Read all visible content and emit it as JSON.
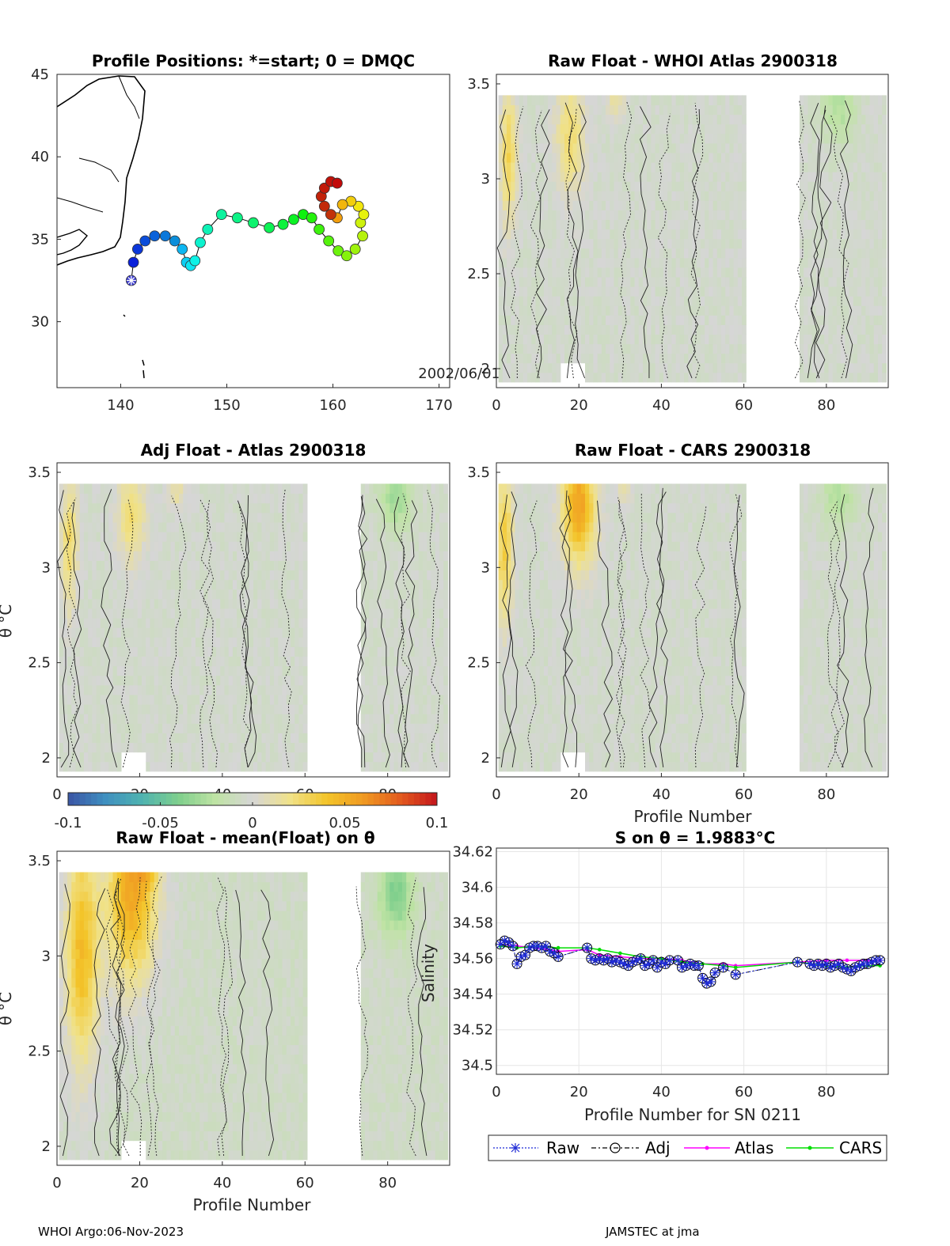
{
  "footer": {
    "left": "WHOI Argo:06-Nov-2023",
    "right": "JAMSTEC at jma"
  },
  "colors": {
    "colormap": [
      "#3b54a4",
      "#3f8fc0",
      "#4fb3b0",
      "#7fcf8c",
      "#bfe3a4",
      "#d6d6d6",
      "#f0e28a",
      "#f3c52a",
      "#f09a22",
      "#e35b1e",
      "#c4161c"
    ],
    "raw": "#1f2bd6",
    "adj": "#000000",
    "atlas": "#ff00ff",
    "cars": "#00dd00"
  },
  "chart_data": [
    {
      "id": "map",
      "type": "scatter",
      "title": "Profile Positions: *=start; 0 = DMQC",
      "xlim": [
        134,
        171
      ],
      "ylim": [
        26,
        45
      ],
      "xticks": [
        "140",
        "150",
        "160",
        "170"
      ],
      "yticks": [
        "30",
        "35",
        "40",
        "45"
      ],
      "date_label": "2002/06/01",
      "track": [
        [
          141,
          32.5
        ],
        [
          141.2,
          33.6
        ],
        [
          141.6,
          34.4
        ],
        [
          142.3,
          34.9
        ],
        [
          143.2,
          35.2
        ],
        [
          144.2,
          35.2
        ],
        [
          145.1,
          34.9
        ],
        [
          145.8,
          34.4
        ],
        [
          146.2,
          33.6
        ],
        [
          146.6,
          33.4
        ],
        [
          147,
          33.7
        ],
        [
          147.5,
          34.8
        ],
        [
          148.2,
          35.6
        ],
        [
          149.5,
          36.5
        ],
        [
          151,
          36.3
        ],
        [
          152.5,
          36
        ],
        [
          154,
          35.7
        ],
        [
          155.3,
          35.9
        ],
        [
          156.3,
          36.2
        ],
        [
          157.2,
          36.5
        ],
        [
          158,
          36.3
        ],
        [
          158.7,
          35.6
        ],
        [
          159.6,
          34.9
        ],
        [
          160.5,
          34.3
        ],
        [
          161.3,
          34
        ],
        [
          162.1,
          34.4
        ],
        [
          162.8,
          35.2
        ],
        [
          162.6,
          36
        ],
        [
          162.9,
          36.5
        ],
        [
          162.4,
          37
        ],
        [
          161.7,
          37.3
        ],
        [
          160.9,
          37.1
        ],
        [
          160.4,
          36.3
        ],
        [
          159.8,
          36.5
        ],
        [
          159.2,
          37
        ],
        [
          158.9,
          37.6
        ],
        [
          159.2,
          38.1
        ],
        [
          159.8,
          38.5
        ],
        [
          160.4,
          38.4
        ]
      ]
    },
    {
      "id": "p1",
      "type": "heatmap",
      "title": "Raw Float - WHOI Atlas  2900318",
      "xlim": [
        0,
        95
      ],
      "ylim": [
        1.9,
        3.55
      ],
      "xticks": [
        "0",
        "20",
        "40",
        "60",
        "80"
      ],
      "yticks": [
        "2",
        "2.5",
        "3",
        "3.5"
      ],
      "ylabel": "",
      "xlabel": "",
      "gap": [
        60,
        73
      ],
      "base": -0.004,
      "blobs": [
        [
          3,
          3.1,
          2,
          0.35,
          0.035
        ],
        [
          18,
          3.2,
          3.5,
          0.3,
          0.03
        ],
        [
          29,
          3.4,
          2,
          0.12,
          0.02
        ],
        [
          83,
          3.35,
          4,
          0.18,
          -0.02
        ]
      ]
    },
    {
      "id": "p2",
      "type": "heatmap",
      "title": "Adj Float - Atlas  2900318",
      "xlim": [
        0,
        95
      ],
      "ylim": [
        1.9,
        3.55
      ],
      "xticks": [
        "0",
        "20",
        "40",
        "60",
        "80"
      ],
      "yticks": [
        "2",
        "2.5",
        "3",
        "3.5"
      ],
      "ylabel": "θ °C",
      "xlabel": "",
      "gap": [
        60,
        73
      ],
      "base": -0.004,
      "blobs": [
        [
          3,
          3.1,
          2,
          0.35,
          0.03
        ],
        [
          18,
          3.25,
          3.5,
          0.25,
          0.028
        ],
        [
          29,
          3.4,
          2,
          0.12,
          0.018
        ],
        [
          82,
          3.35,
          4,
          0.18,
          -0.025
        ]
      ]
    },
    {
      "id": "p3",
      "type": "heatmap",
      "title": "Raw Float - CARS  2900318",
      "xlim": [
        0,
        95
      ],
      "ylim": [
        1.9,
        3.55
      ],
      "xticks": [
        "0",
        "20",
        "40",
        "60",
        "80"
      ],
      "yticks": [
        "2",
        "2.5",
        "3",
        "3.5"
      ],
      "ylabel": "",
      "xlabel": "Profile Number",
      "gap": [
        60,
        73
      ],
      "base": -0.004,
      "blobs": [
        [
          2,
          3.1,
          2,
          0.4,
          0.04
        ],
        [
          20,
          3.3,
          4,
          0.3,
          0.06
        ],
        [
          31,
          3.45,
          2,
          0.12,
          0.025
        ],
        [
          83,
          3.35,
          4,
          0.18,
          -0.02
        ]
      ]
    },
    {
      "id": "p4",
      "type": "heatmap",
      "title": "Raw Float - mean(Float) on θ",
      "xlim": [
        0,
        95
      ],
      "ylim": [
        1.9,
        3.55
      ],
      "xticks": [
        "0",
        "20",
        "40",
        "60",
        "80"
      ],
      "yticks": [
        "2",
        "2.5",
        "3",
        "3.5"
      ],
      "ylabel": "θ °C",
      "xlabel": "Profile Number",
      "gap": [
        60,
        73
      ],
      "base": -0.006,
      "blobs": [
        [
          6,
          3.0,
          4,
          0.6,
          0.05
        ],
        [
          18,
          3.3,
          6,
          0.45,
          0.06
        ],
        [
          22,
          3.5,
          3,
          0.15,
          0.03
        ],
        [
          82,
          3.3,
          4,
          0.2,
          -0.035
        ]
      ]
    },
    {
      "id": "colorbar",
      "type": "heatmap",
      "clim": [
        -0.1,
        0.1
      ],
      "ticks": [
        "-0.1",
        "-0.05",
        "0",
        "0.05",
        "0.1"
      ]
    },
    {
      "id": "salinity",
      "type": "line",
      "title": "S on θ = 1.9883°C",
      "xlabel": "Profile Number for SN 0211",
      "ylabel": "Salinity",
      "xlim": [
        0,
        95
      ],
      "ylim": [
        34.495,
        34.622
      ],
      "xticks": [
        "0",
        "20",
        "40",
        "60",
        "80"
      ],
      "yticks": [
        "34.5",
        "34.52",
        "34.54",
        "34.56",
        "34.58",
        "34.6",
        "34.62"
      ],
      "legend": [
        "Raw",
        "Adj",
        "Atlas",
        "CARS"
      ],
      "series": [
        {
          "name": "Raw",
          "x": [
            1,
            2,
            3,
            4,
            5,
            6,
            7,
            8,
            9,
            10,
            11,
            12,
            13,
            14,
            15,
            22,
            23,
            24,
            25,
            26,
            27,
            28,
            29,
            30,
            31,
            32,
            33,
            34,
            35,
            36,
            37,
            38,
            39,
            40,
            41,
            42,
            44,
            45,
            46,
            47,
            48,
            49,
            50,
            51,
            52,
            53,
            55,
            58,
            73,
            76,
            77,
            78,
            79,
            80,
            81,
            82,
            83,
            84,
            85,
            86,
            87,
            88,
            89,
            90,
            91,
            92,
            93
          ],
          "y": [
            34.568,
            34.57,
            34.569,
            34.567,
            34.557,
            34.561,
            34.562,
            34.566,
            34.567,
            34.567,
            34.566,
            34.567,
            34.564,
            34.563,
            34.561,
            34.566,
            34.56,
            34.559,
            34.56,
            34.559,
            34.56,
            34.558,
            34.559,
            34.558,
            34.557,
            34.556,
            34.558,
            34.559,
            34.56,
            34.556,
            34.557,
            34.559,
            34.555,
            34.558,
            34.557,
            34.559,
            34.559,
            34.555,
            34.556,
            34.557,
            34.556,
            34.556,
            34.549,
            34.546,
            34.547,
            34.552,
            34.555,
            34.551,
            34.558,
            34.557,
            34.556,
            34.557,
            34.556,
            34.557,
            34.555,
            34.556,
            34.557,
            34.555,
            34.554,
            34.553,
            34.555,
            34.556,
            34.557,
            34.557,
            34.558,
            34.559,
            34.559
          ]
        },
        {
          "name": "Adj",
          "x": [
            1,
            2,
            3,
            4,
            5,
            6,
            7,
            8,
            9,
            10,
            11,
            12,
            13,
            14,
            15,
            22,
            23,
            24,
            25,
            26,
            27,
            28,
            29,
            30,
            31,
            32,
            33,
            34,
            35,
            36,
            37,
            38,
            39,
            40,
            41,
            42,
            44,
            45,
            46,
            47,
            48,
            49,
            50,
            51,
            52,
            53,
            55,
            58,
            73,
            76,
            77,
            78,
            79,
            80,
            81,
            82,
            83,
            84,
            85,
            86,
            87,
            88,
            89,
            90,
            91,
            92,
            93
          ],
          "y": [
            34.568,
            34.57,
            34.569,
            34.567,
            34.557,
            34.561,
            34.562,
            34.566,
            34.567,
            34.567,
            34.566,
            34.567,
            34.564,
            34.563,
            34.561,
            34.566,
            34.56,
            34.559,
            34.56,
            34.559,
            34.56,
            34.558,
            34.559,
            34.558,
            34.557,
            34.556,
            34.558,
            34.559,
            34.56,
            34.556,
            34.557,
            34.559,
            34.555,
            34.558,
            34.557,
            34.559,
            34.559,
            34.555,
            34.556,
            34.557,
            34.556,
            34.556,
            34.549,
            34.546,
            34.547,
            34.552,
            34.555,
            34.551,
            34.558,
            34.557,
            34.556,
            34.557,
            34.556,
            34.557,
            34.555,
            34.556,
            34.557,
            34.555,
            34.554,
            34.553,
            34.555,
            34.556,
            34.557,
            34.557,
            34.558,
            34.559,
            34.559
          ]
        },
        {
          "name": "Atlas",
          "x": [
            1,
            5,
            10,
            15,
            22,
            25,
            30,
            35,
            40,
            45,
            50,
            55,
            58,
            73,
            80,
            85,
            90,
            93
          ],
          "y": [
            34.568,
            34.567,
            34.566,
            34.564,
            34.565,
            34.562,
            34.561,
            34.56,
            34.56,
            34.559,
            34.557,
            34.557,
            34.556,
            34.558,
            34.559,
            34.559,
            34.559,
            34.559
          ]
        },
        {
          "name": "CARS",
          "x": [
            1,
            5,
            10,
            15,
            22,
            25,
            30,
            35,
            40,
            45,
            50,
            55,
            58,
            73,
            80,
            85,
            90,
            93
          ],
          "y": [
            34.567,
            34.566,
            34.567,
            34.566,
            34.566,
            34.565,
            34.563,
            34.561,
            34.56,
            34.558,
            34.557,
            34.556,
            34.555,
            34.558,
            34.556,
            34.555,
            34.556,
            34.556
          ]
        }
      ]
    }
  ]
}
